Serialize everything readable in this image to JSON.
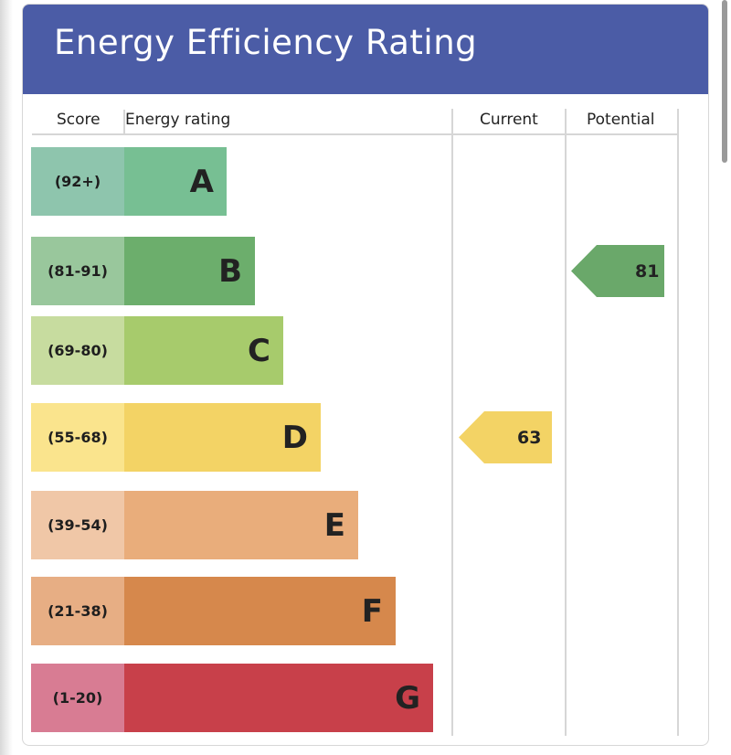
{
  "title": "Energy Efficiency Rating",
  "columns": {
    "score": "Score",
    "energy_rating": "Energy rating",
    "current": "Current",
    "potential": "Potential"
  },
  "chart_data": {
    "type": "bar",
    "title": "Energy Efficiency Rating",
    "bands": [
      {
        "letter": "A",
        "range": "(92+)",
        "min": 92,
        "max": 100,
        "color": "#77bf93",
        "score_color": "#8ec5ad"
      },
      {
        "letter": "B",
        "range": "(81-91)",
        "min": 81,
        "max": 91,
        "color": "#6cae6c",
        "score_color": "#99c79c"
      },
      {
        "letter": "C",
        "range": "(69-80)",
        "min": 69,
        "max": 80,
        "color": "#a7cb6c",
        "score_color": "#c7dc9f"
      },
      {
        "letter": "D",
        "range": "(55-68)",
        "min": 55,
        "max": 68,
        "color": "#f3d365",
        "score_color": "#fae48d"
      },
      {
        "letter": "E",
        "range": "(39-54)",
        "min": 39,
        "max": 54,
        "color": "#e9ad7b",
        "score_color": "#f0c7a7"
      },
      {
        "letter": "F",
        "range": "(21-38)",
        "min": 21,
        "max": 38,
        "color": "#d6884c",
        "score_color": "#e7ae84"
      },
      {
        "letter": "G",
        "range": "(1-20)",
        "min": 1,
        "max": 20,
        "color": "#c8404a",
        "score_color": "#d87c93"
      }
    ],
    "current": {
      "value": 63,
      "band": "D",
      "color": "#f3d365"
    },
    "potential": {
      "value": 81,
      "band": "B",
      "color": "#6aa86a"
    }
  }
}
